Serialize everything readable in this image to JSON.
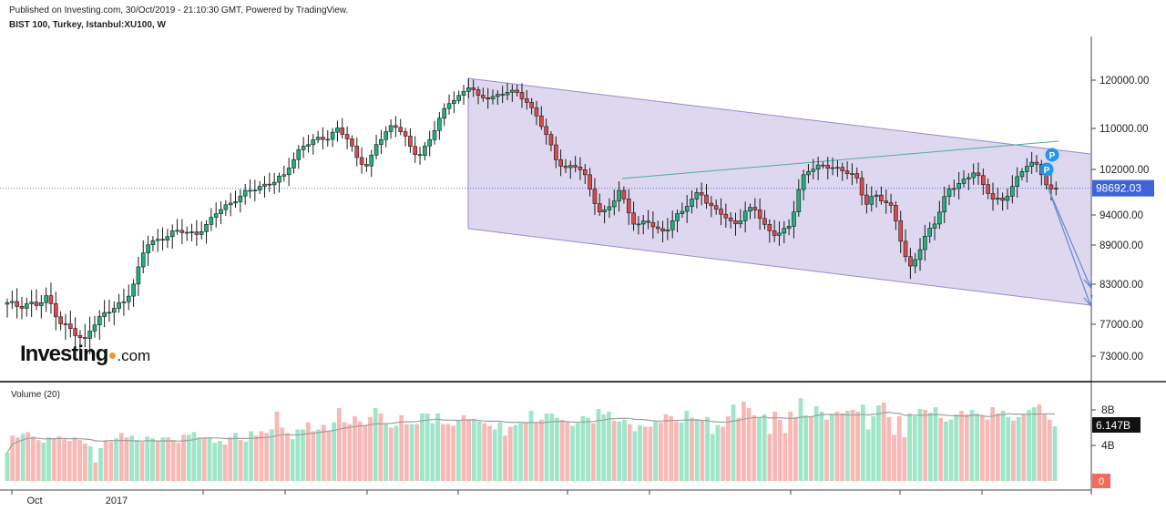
{
  "header": {
    "published": "Published on Investing.com, 30/Oct/2019 - 21:10:30 GMT, Powered by TradingView.",
    "symbol": "BIST 100, Turkey, Istanbul:XU100, W"
  },
  "logo": {
    "main": "Investing",
    "suffix": ".com"
  },
  "colors": {
    "up": "#1db27c",
    "down": "#e0474c",
    "vol_up": "#9ee6c8",
    "vol_down": "#f8b9b6",
    "channel_fill": "#d7d0ec",
    "channel_line": "#9e88cc",
    "trend_line": "#4caf9c",
    "last_price_line": "#5b7ed8",
    "projection": "#6b86d2",
    "marker": "#2196f3",
    "volume_ma": "#9e9e9e"
  },
  "chart_data": {
    "type": "candlestick",
    "timeframe": "W",
    "price_axis": {
      "ticks": [
        120000,
        110000,
        102000,
        94000,
        89000,
        83000,
        77000,
        73000
      ],
      "labels": [
        "120000.00",
        "110000.00",
        "102000.00",
        "94000.00",
        "89000.00",
        "83000.00",
        "77000.00",
        "73000.00"
      ]
    },
    "last_price": {
      "value": 98692.03,
      "label": "98692.03"
    },
    "time_axis": {
      "labels": [
        "Oct",
        "2017"
      ]
    },
    "volume_pane": {
      "title": "Volume (20)",
      "ticks": [
        "8B",
        "4B"
      ],
      "last_value": "6.147B",
      "zero_label": "0",
      "bars": [
        3.2,
        5.1,
        4.9,
        5.3,
        5.5,
        5.0,
        4.6,
        4.3,
        4.9,
        4.8,
        5.0,
        4.7,
        4.5,
        4.9,
        4.6,
        4.2,
        3.9,
        2.1,
        3.7,
        4.6,
        4.4,
        4.8,
        5.4,
        4.9,
        5.1,
        4.6,
        4.4,
        5.0,
        4.8,
        4.5,
        4.9,
        4.9,
        4.6,
        4.3,
        5.2,
        5.2,
        5.5,
        4.9,
        4.8,
        4.8,
        4.3,
        4.5,
        4.1,
        4.9,
        5.4,
        4.6,
        4.4,
        5.6,
        5.1,
        5.6,
        5.4,
        5.8,
        7.8,
        6.0,
        5.4,
        4.7,
        5.8,
        5.8,
        6.6,
        5.6,
        5.8,
        6.3,
        5.6,
        6.6,
        8.2,
        6.6,
        6.4,
        7.3,
        6.7,
        6.3,
        7.2,
        8.2,
        7.6,
        6.4,
        6.0,
        6.2,
        7.4,
        6.4,
        6.4,
        6.4,
        7.6,
        7.6,
        6.5,
        7.6,
        6.4,
        6.4,
        6.2,
        6.8,
        7.4,
        6.9,
        7.0,
        6.7,
        6.5,
        6.2,
        5.8,
        6.6,
        5.1,
        6.1,
        6.3,
        6.5,
        6.6,
        7.9,
        6.5,
        6.9,
        7.6,
        7.6,
        7.1,
        6.9,
        6.6,
        6.2,
        6.5,
        7.3,
        7.1,
        6.5,
        8.1,
        7.5,
        7.8,
        6.8,
        6.7,
        6.9,
        6.4,
        5.6,
        6.3,
        6.1,
        6.1,
        6.7,
        6.6,
        7.5,
        7.3,
        6.7,
        6.6,
        7.9,
        7.1,
        6.9,
        6.8,
        7.2,
        5.3,
        6.3,
        6.1,
        7.3,
        8.6,
        7.1,
        8.9,
        8.2,
        7.4,
        7.2,
        7.5,
        5.3,
        7.8,
        6.9,
        5.4,
        7.8,
        7.2,
        9.3,
        7.4,
        7.3,
        8.4,
        7.8,
        6.9,
        7.5,
        7.8,
        7.6,
        7.9,
        8.0,
        7.8,
        8.6,
        5.8,
        7.3,
        8.5,
        8.8,
        7.2,
        5.2,
        7.3,
        4.9,
        7.6,
        7.3,
        8.1,
        8.0,
        7.7,
        8.3,
        7.1,
        6.7,
        6.9,
        7.5,
        7.9,
        7.5,
        8.0,
        7.6,
        7.3,
        6.9,
        8.3,
        7.6,
        7.9,
        7.2,
        6.8,
        7.2,
        7.5,
        8.0,
        8.3,
        8.6,
        7.5,
        6.9,
        6.147
      ]
    },
    "drawings": {
      "channel": {
        "type": "descending-channel"
      },
      "trend_line": {
        "type": "rising-line"
      },
      "projection_arrows": 2,
      "markers": [
        "P",
        "P"
      ]
    }
  }
}
